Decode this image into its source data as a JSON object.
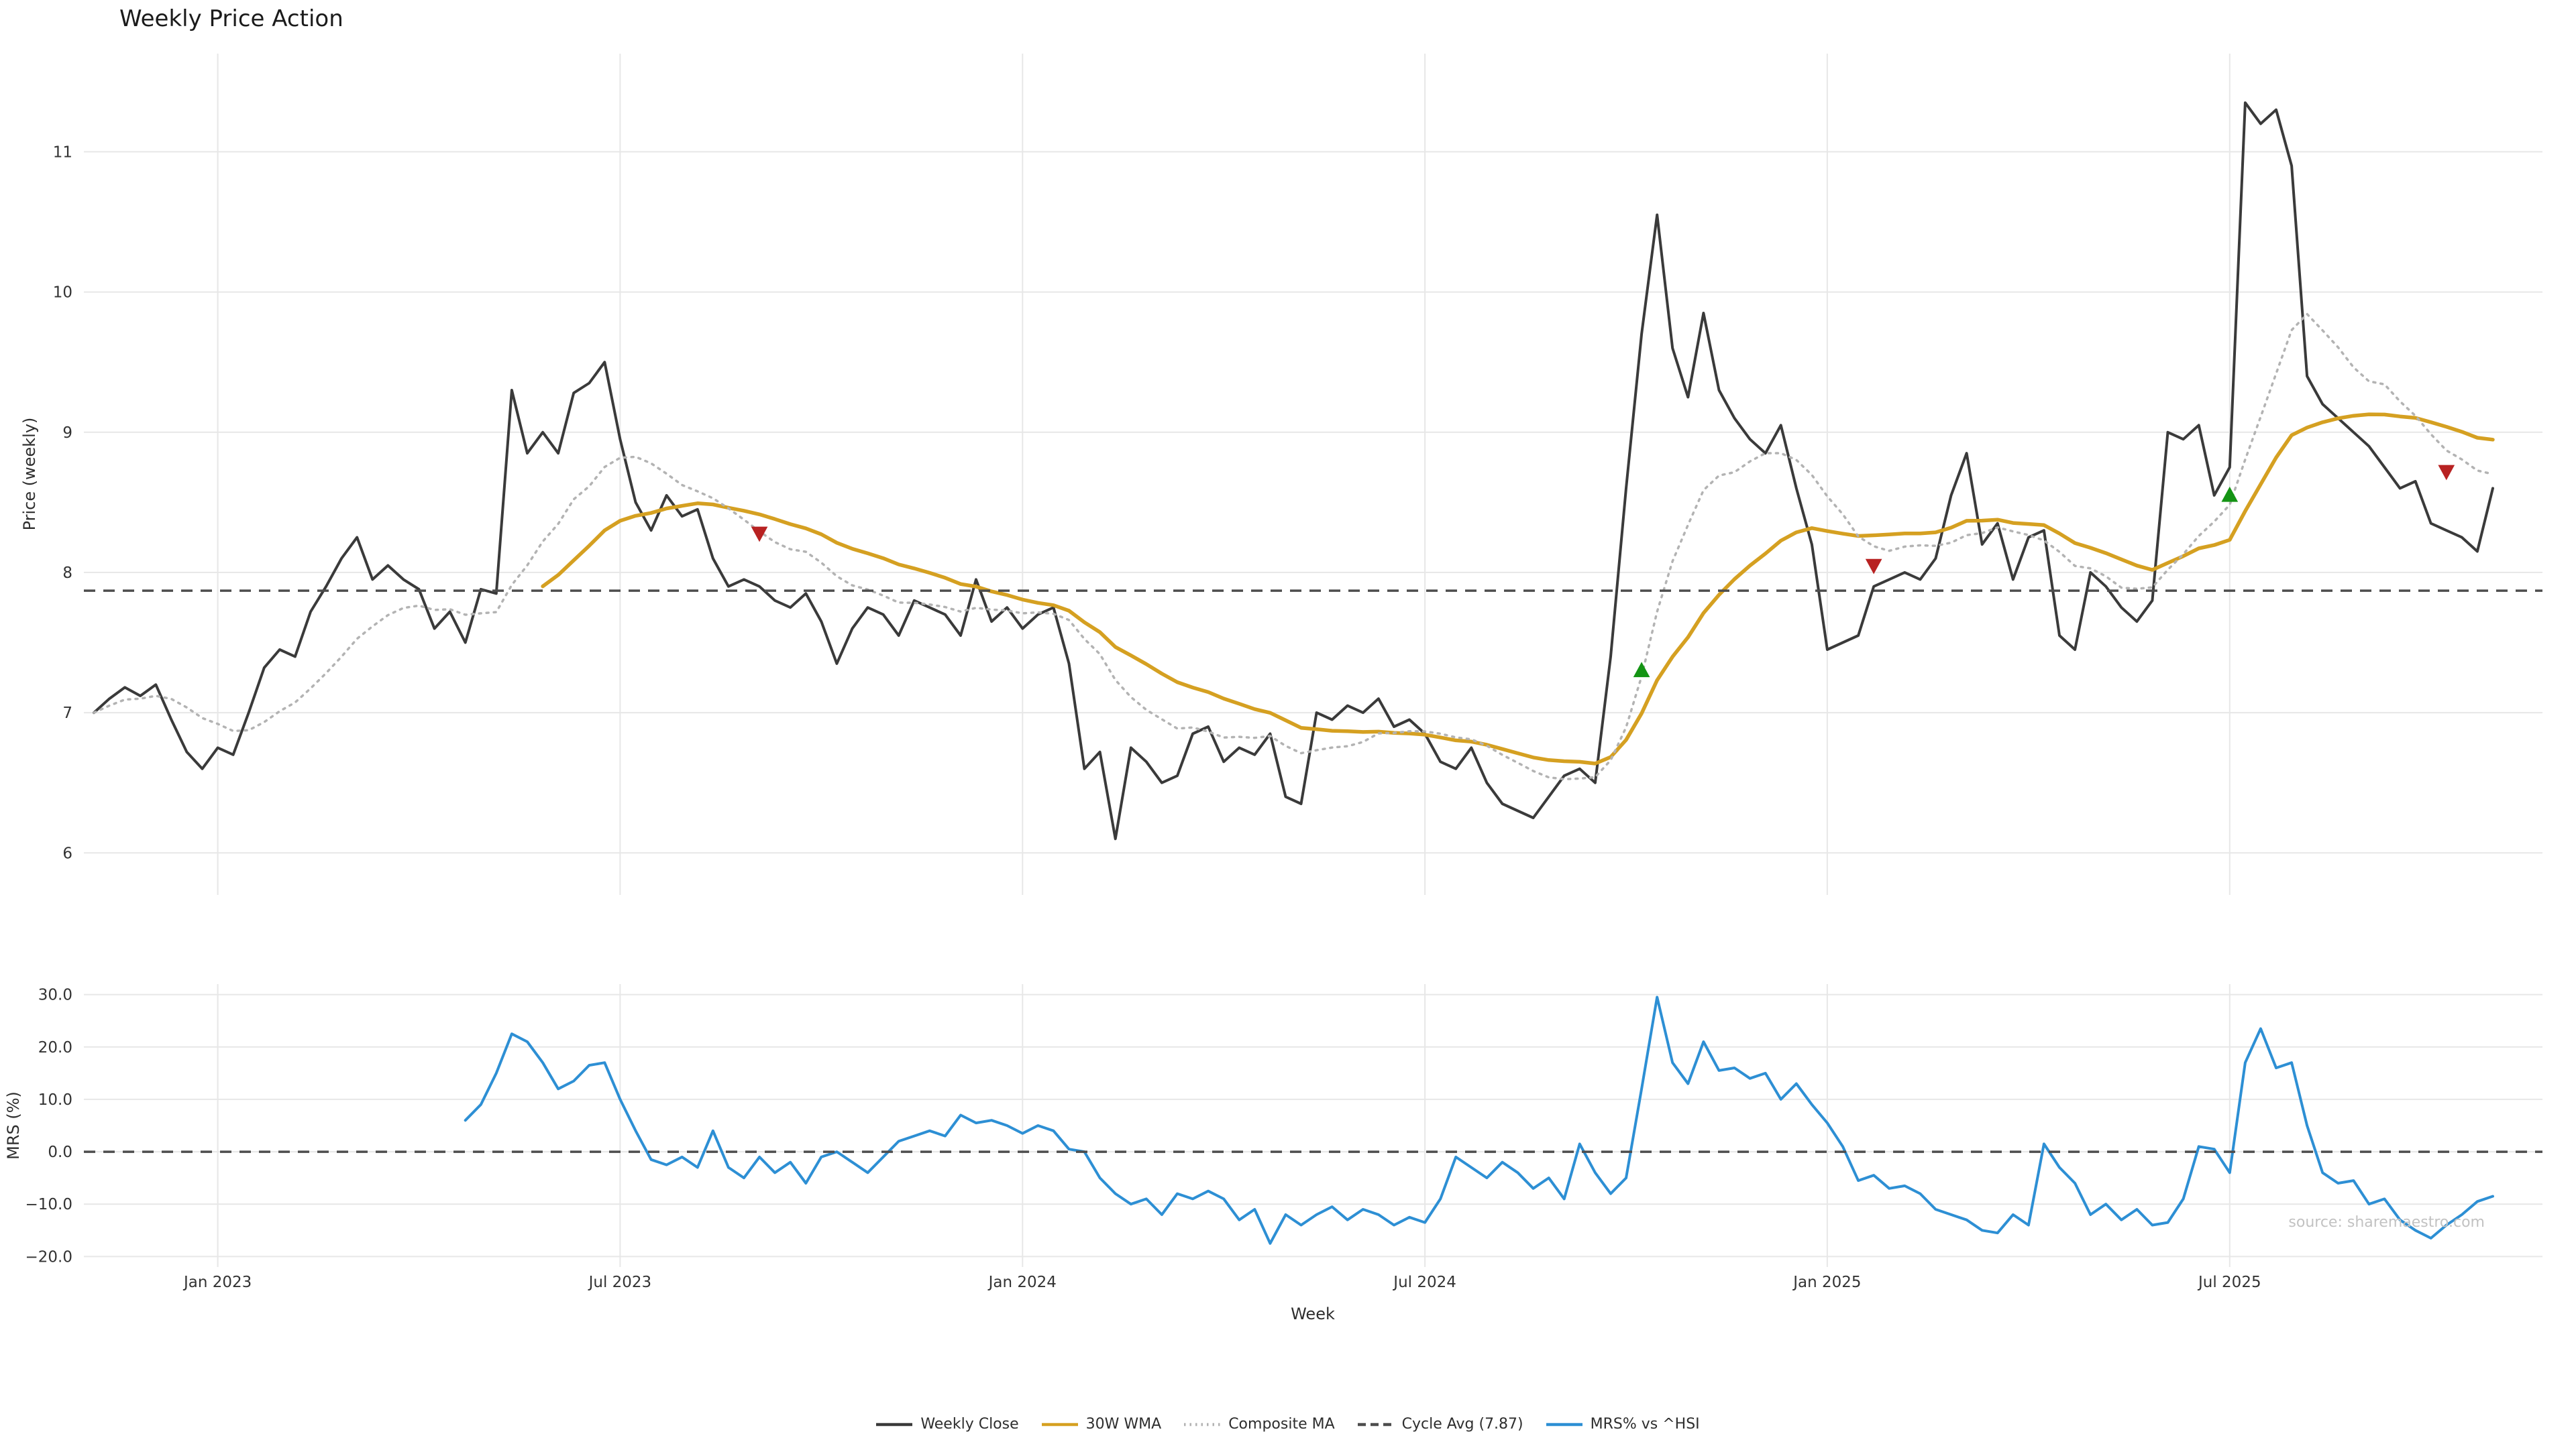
{
  "title": "Weekly Price Action",
  "watermark": "source: sharemaestro.com",
  "axes": {
    "x_label": "Week",
    "price_y_label": "Price (weekly)",
    "mrs_y_label": "MRS (%)"
  },
  "legend": {
    "items": [
      {
        "label": "Weekly Close",
        "color": "#3a3a3a",
        "style": "solid"
      },
      {
        "label": "30W WMA",
        "color": "#d5a021",
        "style": "solid"
      },
      {
        "label": "Composite MA",
        "color": "#b3b3b3",
        "style": "dotted"
      },
      {
        "label": "Cycle Avg (7.87)",
        "color": "#4d4d4d",
        "style": "dashed"
      },
      {
        "label": "MRS% vs ^HSI",
        "color": "#2d8fd4",
        "style": "solid"
      }
    ]
  },
  "chart_data": {
    "type": "line",
    "title": "Weekly Price Action",
    "xlabel": "Week",
    "x_unit": "weekly index (Nov 2022 - Oct 2025)",
    "n_points": 156,
    "grid": true,
    "legend_position": "bottom-center",
    "cycle_avg": 7.87,
    "x_ticks": [
      {
        "index": 8,
        "label": "Jan 2023"
      },
      {
        "index": 34,
        "label": "Jul 2023"
      },
      {
        "index": 60,
        "label": "Jan 2024"
      },
      {
        "index": 86,
        "label": "Jul 2024"
      },
      {
        "index": 112,
        "label": "Jan 2025"
      },
      {
        "index": 138,
        "label": "Jul 2025"
      }
    ],
    "panels": [
      {
        "name": "price",
        "ylabel": "Price (weekly)",
        "ylim": [
          5.7,
          11.7
        ],
        "yticks": [
          {
            "v": 6,
            "label": "6"
          },
          {
            "v": 7,
            "label": "7"
          },
          {
            "v": 8,
            "label": "8"
          },
          {
            "v": 9,
            "label": "9"
          },
          {
            "v": 10,
            "label": "10"
          },
          {
            "v": 11,
            "label": "11"
          }
        ]
      },
      {
        "name": "mrs",
        "ylabel": "MRS (%)",
        "ylim": [
          -22,
          32
        ],
        "yticks": [
          {
            "v": -20,
            "label": "−20.0"
          },
          {
            "v": -10,
            "label": "−10.0"
          },
          {
            "v": 0,
            "label": "0.0"
          },
          {
            "v": 10,
            "label": "10.0"
          },
          {
            "v": 20,
            "label": "20.0"
          },
          {
            "v": 30,
            "label": "30.0"
          }
        ]
      }
    ],
    "series": [
      {
        "name": "Weekly Close",
        "panel": "price",
        "color": "#3a3a3a",
        "style": "solid",
        "width": 4,
        "values": [
          7.0,
          7.1,
          7.18,
          7.12,
          7.2,
          6.95,
          6.72,
          6.6,
          6.75,
          6.7,
          7.0,
          7.32,
          7.45,
          7.4,
          7.72,
          7.9,
          8.1,
          8.25,
          7.95,
          8.05,
          7.95,
          7.88,
          7.6,
          7.72,
          7.5,
          7.88,
          7.85,
          9.3,
          8.85,
          9.0,
          8.85,
          9.28,
          9.35,
          9.5,
          8.95,
          8.5,
          8.3,
          8.55,
          8.4,
          8.45,
          8.1,
          7.9,
          7.95,
          7.9,
          7.8,
          7.75,
          7.85,
          7.65,
          7.35,
          7.6,
          7.75,
          7.7,
          7.55,
          7.8,
          7.75,
          7.7,
          7.55,
          7.95,
          7.65,
          7.75,
          7.6,
          7.7,
          7.75,
          7.35,
          6.6,
          6.72,
          6.1,
          6.75,
          6.65,
          6.5,
          6.55,
          6.85,
          6.9,
          6.65,
          6.75,
          6.7,
          6.85,
          6.4,
          6.35,
          7.0,
          6.95,
          7.05,
          7.0,
          7.1,
          6.9,
          6.95,
          6.85,
          6.65,
          6.6,
          6.75,
          6.5,
          6.35,
          6.3,
          6.25,
          6.4,
          6.55,
          6.6,
          6.5,
          7.4,
          8.6,
          9.7,
          10.55,
          9.6,
          9.25,
          9.85,
          9.3,
          9.1,
          8.95,
          8.85,
          9.05,
          8.6,
          8.2,
          7.45,
          7.5,
          7.55,
          7.9,
          7.95,
          8.0,
          7.95,
          8.1,
          8.55,
          8.85,
          8.2,
          8.35,
          7.95,
          8.25,
          8.3,
          7.55,
          7.45,
          8.0,
          7.9,
          7.75,
          7.65,
          7.8,
          9.0,
          8.95,
          9.05,
          8.55,
          8.75,
          11.35,
          11.2,
          11.3,
          10.9,
          9.4,
          9.2,
          9.1,
          9.0,
          8.9,
          8.75,
          8.6,
          8.65,
          8.35,
          8.3,
          8.25,
          8.15,
          8.6
        ]
      },
      {
        "name": "30W WMA",
        "panel": "price",
        "color": "#d5a021",
        "style": "solid",
        "width": 5.5,
        "derived": {
          "method": "wma",
          "window": 30,
          "source": "Weekly Close"
        }
      },
      {
        "name": "Composite MA",
        "panel": "price",
        "color": "#b3b3b3",
        "style": "dotted",
        "width": 3.5,
        "derived": {
          "method": "mean_of_smas",
          "windows": [
            5,
            10,
            20
          ],
          "source": "Weekly Close"
        }
      },
      {
        "name": "Cycle Avg",
        "panel": "price",
        "color": "#4d4d4d",
        "style": "dashed",
        "width": 3.5,
        "constant": 7.87
      },
      {
        "name": "MRS% vs ^HSI",
        "panel": "mrs",
        "color": "#2d8fd4",
        "style": "solid",
        "width": 4,
        "start_index": 24,
        "values": [
          6,
          9,
          15,
          22.5,
          21,
          17,
          12,
          13.5,
          16.5,
          17,
          10,
          4,
          -1.5,
          -2.5,
          -1,
          -3,
          4,
          -3,
          -5,
          -1,
          -4,
          -2,
          -6,
          -1,
          0,
          -2,
          -4,
          -1,
          2,
          3,
          4,
          3,
          7,
          5.5,
          6,
          5,
          3.5,
          5,
          4,
          0.5,
          0,
          -5,
          -8,
          -10,
          -9,
          -12,
          -8,
          -9,
          -7.5,
          -9,
          -13,
          -11,
          -17.5,
          -12,
          -14,
          -12,
          -10.5,
          -13,
          -11,
          -12,
          -14,
          -12.5,
          -13.5,
          -9,
          -1,
          -3,
          -5,
          -2,
          -4,
          -7,
          -5,
          -9,
          1.5,
          -4,
          -8,
          -5,
          12,
          29.5,
          17,
          13,
          21,
          15.5,
          16,
          14,
          15,
          10,
          13,
          9,
          5.5,
          1,
          -5.5,
          -4.5,
          -7,
          -6.5,
          -8,
          -11,
          -12,
          -13,
          -15,
          -15.5,
          -12,
          -14,
          1.5,
          -3,
          -6,
          -12,
          -10,
          -13,
          -11,
          -14,
          -13.5,
          -9,
          1,
          0.5,
          -4,
          17,
          23.5,
          16,
          17,
          5,
          -4,
          -6,
          -5.5,
          -10,
          -9,
          -13,
          -15,
          -16.5,
          -14,
          -12,
          -9.5,
          -8.5
        ]
      },
      {
        "name": "Zero Line",
        "panel": "mrs",
        "color": "#4d4d4d",
        "style": "dashed",
        "width": 3.5,
        "constant": 0
      }
    ],
    "markers": [
      {
        "type": "sell",
        "index": 43,
        "price": 8.28
      },
      {
        "type": "buy",
        "index": 100,
        "price": 7.3
      },
      {
        "type": "sell",
        "index": 115,
        "price": 8.05
      },
      {
        "type": "buy",
        "index": 138,
        "price": 8.55
      },
      {
        "type": "sell",
        "index": 152,
        "price": 8.72
      }
    ],
    "marker_colors": {
      "buy": "#149414",
      "sell": "#b82222"
    }
  }
}
